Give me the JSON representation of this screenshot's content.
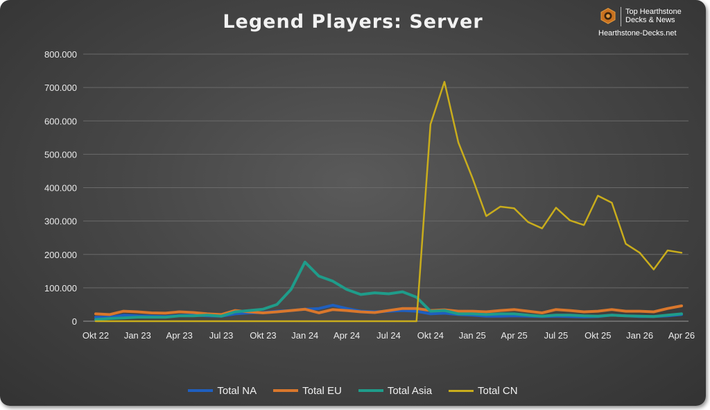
{
  "brand": {
    "line1": "Top Hearthstone",
    "line2": "Decks & News",
    "url": "Hearthstone-Decks.net"
  },
  "chart_data": {
    "type": "line",
    "title": "Legend Players: Server",
    "xlabel": "",
    "ylabel": "",
    "ylim": [
      0,
      800000
    ],
    "yticks": [
      0,
      100000,
      200000,
      300000,
      400000,
      500000,
      600000,
      700000,
      800000
    ],
    "ytick_labels": [
      "0",
      "100.000",
      "200.000",
      "300.000",
      "400.000",
      "500.000",
      "600.000",
      "700.000",
      "800.000"
    ],
    "grid": true,
    "legend_position": "bottom",
    "x": [
      "Okt 22",
      "Nov 22",
      "Dez 22",
      "Jan 23",
      "Feb 23",
      "Mär 23",
      "Apr 23",
      "Mai 23",
      "Jun 23",
      "Jul 23",
      "Aug 23",
      "Sep 23",
      "Okt 23",
      "Nov 23",
      "Dez 23",
      "Jan 24",
      "Feb 24",
      "Mär 24",
      "Apr 24",
      "Mai 24",
      "Jun 24",
      "Jul 24",
      "Aug 24",
      "Sep 24",
      "Okt 24",
      "Nov 24",
      "Dez 24",
      "Jan 25",
      "Feb 25",
      "Mär 25",
      "Apr 25",
      "Mai 25",
      "Jun 25",
      "Jul 25",
      "Aug 25",
      "Sep 25",
      "Okt 25",
      "Nov 25",
      "Dez 25",
      "Jan 26",
      "Feb 26",
      "Mär 26",
      "Apr 26"
    ],
    "x_tick_labels": [
      "Okt 22",
      "Jan 23",
      "Apr 23",
      "Jul 23",
      "Okt 23",
      "Jan 24",
      "Apr 24",
      "Jul 24",
      "Okt 24",
      "Jan 25",
      "Apr 25",
      "Jul 25",
      "Okt 25",
      "Jan 26",
      "Apr 26"
    ],
    "x_tick_indices": [
      0,
      3,
      6,
      9,
      12,
      15,
      18,
      21,
      24,
      27,
      30,
      33,
      36,
      39,
      42
    ],
    "series": [
      {
        "name": "Total NA",
        "color": "#1f5fbf",
        "values": [
          12000,
          12000,
          18000,
          16000,
          15000,
          14000,
          17000,
          18000,
          16000,
          15000,
          22000,
          25000,
          26000,
          30000,
          32000,
          36000,
          38000,
          48000,
          38000,
          30000,
          28000,
          30000,
          32000,
          30000,
          22000,
          24000,
          20000,
          18000,
          15000,
          15000,
          16000,
          15000,
          14000,
          15000,
          14000,
          13000,
          14000,
          18000,
          16000,
          14000,
          14000,
          16000,
          20000
        ]
      },
      {
        "name": "Total EU",
        "color": "#d9772c",
        "values": [
          22000,
          20000,
          30000,
          28000,
          25000,
          24000,
          28000,
          26000,
          22000,
          20000,
          32000,
          28000,
          25000,
          28000,
          32000,
          36000,
          25000,
          35000,
          32000,
          28000,
          26000,
          32000,
          38000,
          38000,
          32000,
          34000,
          30000,
          30000,
          28000,
          32000,
          35000,
          30000,
          25000,
          35000,
          32000,
          28000,
          30000,
          35000,
          30000,
          30000,
          28000,
          38000,
          46000
        ]
      },
      {
        "name": "Total Asia",
        "color": "#1f9c8a",
        "values": [
          5000,
          8000,
          10000,
          12000,
          12000,
          12000,
          16000,
          16000,
          18000,
          15000,
          28000,
          32000,
          36000,
          50000,
          95000,
          177000,
          135000,
          120000,
          95000,
          80000,
          85000,
          82000,
          88000,
          72000,
          30000,
          32000,
          22000,
          22000,
          20000,
          22000,
          22000,
          18000,
          15000,
          18000,
          18000,
          16000,
          15000,
          18000,
          16000,
          15000,
          14000,
          18000,
          22000
        ]
      },
      {
        "name": "Total CN",
        "color": "#c9ad1c",
        "values": [
          0,
          0,
          0,
          0,
          0,
          0,
          0,
          0,
          0,
          0,
          0,
          0,
          0,
          0,
          0,
          0,
          0,
          0,
          0,
          0,
          0,
          0,
          0,
          0,
          590000,
          717000,
          535000,
          430000,
          315000,
          343000,
          338000,
          297000,
          278000,
          340000,
          302000,
          288000,
          376000,
          355000,
          232000,
          205000,
          155000,
          212000,
          205000
        ]
      }
    ]
  }
}
